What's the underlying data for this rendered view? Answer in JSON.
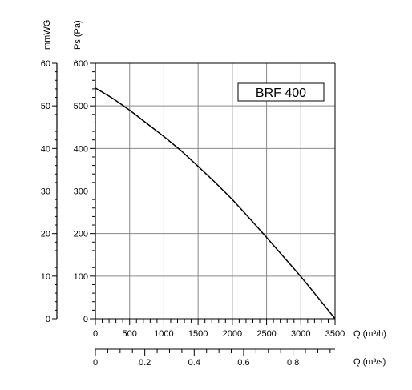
{
  "chart_data": {
    "type": "line",
    "title": "BRF 400",
    "series": [
      {
        "name": "BRF 400",
        "x": [
          0,
          250,
          500,
          750,
          1000,
          1250,
          1500,
          1750,
          2000,
          2250,
          2500,
          2750,
          3000,
          3250,
          3500
        ],
        "y": [
          542,
          518,
          490,
          459,
          428,
          395,
          358,
          320,
          280,
          236,
          191,
          145,
          99,
          50,
          0
        ]
      }
    ],
    "x_axis_primary": {
      "label": "Q (m³/h)",
      "lim": [
        0,
        3500
      ],
      "ticks": [
        "0",
        "500",
        "1000",
        "1500",
        "2000",
        "2500",
        "3000",
        "3500"
      ]
    },
    "x_axis_secondary": {
      "label": "Q (m³/s)",
      "lim": [
        0,
        0.97
      ],
      "ticks": [
        "0",
        "0.2",
        "0.4",
        "0.6",
        "0.8"
      ]
    },
    "y_axis_primary": {
      "label": "Ps (Pa)",
      "lim": [
        0,
        600
      ],
      "ticks": [
        "0",
        "100",
        "200",
        "300",
        "400",
        "500",
        "600"
      ]
    },
    "y_axis_secondary": {
      "label": "mmWG",
      "lim": [
        0,
        60
      ],
      "ticks": [
        "0",
        "10",
        "20",
        "30",
        "40",
        "50",
        "60"
      ]
    },
    "grid": true,
    "legend": "top-right box"
  }
}
